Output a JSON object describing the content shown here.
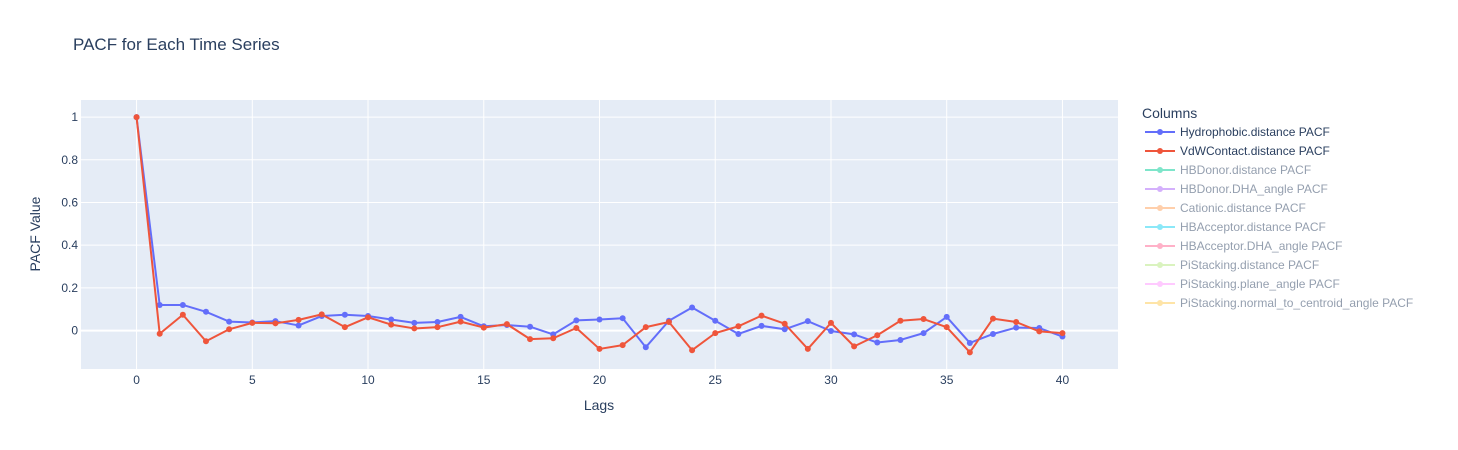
{
  "chart_data": {
    "type": "line",
    "title": "PACF for Each Time Series",
    "xlabel": "Lags",
    "ylabel": "PACF Value",
    "xlim": [
      -2.4,
      42.4
    ],
    "ylim": [
      -0.18,
      1.08
    ],
    "x_ticks": [
      0,
      5,
      10,
      15,
      20,
      25,
      30,
      35,
      40
    ],
    "y_ticks": [
      0,
      0.2,
      0.4,
      0.6,
      0.8,
      1
    ],
    "y_tick_labels": [
      "0",
      "0.2",
      "0.4",
      "0.6",
      "0.8",
      "1"
    ],
    "grid": true,
    "legend_title": "Columns",
    "legend_position": "right",
    "x": [
      0,
      1,
      2,
      3,
      4,
      5,
      6,
      7,
      8,
      9,
      10,
      11,
      12,
      13,
      14,
      15,
      16,
      17,
      18,
      19,
      20,
      21,
      22,
      23,
      24,
      25,
      26,
      27,
      28,
      29,
      30,
      31,
      32,
      33,
      34,
      35,
      36,
      37,
      38,
      39,
      40
    ],
    "series": [
      {
        "name": "Hydrophobic.distance PACF",
        "color": "#636efa",
        "visible": true,
        "values": [
          1,
          0.12,
          0.12,
          0.088,
          0.042,
          0.038,
          0.044,
          0.024,
          0.068,
          0.074,
          0.068,
          0.052,
          0.036,
          0.04,
          0.064,
          0.02,
          0.026,
          0.018,
          -0.018,
          0.048,
          0.052,
          0.058,
          -0.078,
          0.046,
          0.108,
          0.046,
          -0.016,
          0.022,
          0.006,
          0.044,
          -0.002,
          -0.018,
          -0.056,
          -0.044,
          -0.012,
          0.064,
          -0.058,
          -0.016,
          0.014,
          0.012,
          -0.028
        ]
      },
      {
        "name": "VdWContact.distance PACF",
        "color": "#ef553b",
        "visible": true,
        "values": [
          1,
          -0.015,
          0.074,
          -0.05,
          0.006,
          0.036,
          0.034,
          0.05,
          0.076,
          0.016,
          0.062,
          0.028,
          0.01,
          0.016,
          0.042,
          0.014,
          0.03,
          -0.04,
          -0.036,
          0.012,
          -0.086,
          -0.068,
          0.016,
          0.04,
          -0.092,
          -0.012,
          0.02,
          0.07,
          0.032,
          -0.086,
          0.036,
          -0.074,
          -0.022,
          0.046,
          0.054,
          0.016,
          -0.102,
          0.056,
          0.04,
          -0.004,
          -0.012
        ]
      },
      {
        "name": "HBDonor.distance PACF",
        "color": "#00cc96",
        "visible": false
      },
      {
        "name": "HBDonor.DHA_angle PACF",
        "color": "#ab63fa",
        "visible": false
      },
      {
        "name": "Cationic.distance PACF",
        "color": "#ffa15a",
        "visible": false
      },
      {
        "name": "HBAcceptor.distance PACF",
        "color": "#19d3f3",
        "visible": false
      },
      {
        "name": "HBAcceptor.DHA_angle PACF",
        "color": "#ff6692",
        "visible": false
      },
      {
        "name": "PiStacking.distance PACF",
        "color": "#b6e880",
        "visible": false
      },
      {
        "name": "PiStacking.plane_angle PACF",
        "color": "#ff97ff",
        "visible": false
      },
      {
        "name": "PiStacking.normal_to_centroid_angle PACF",
        "color": "#fecb52",
        "visible": false
      }
    ]
  }
}
